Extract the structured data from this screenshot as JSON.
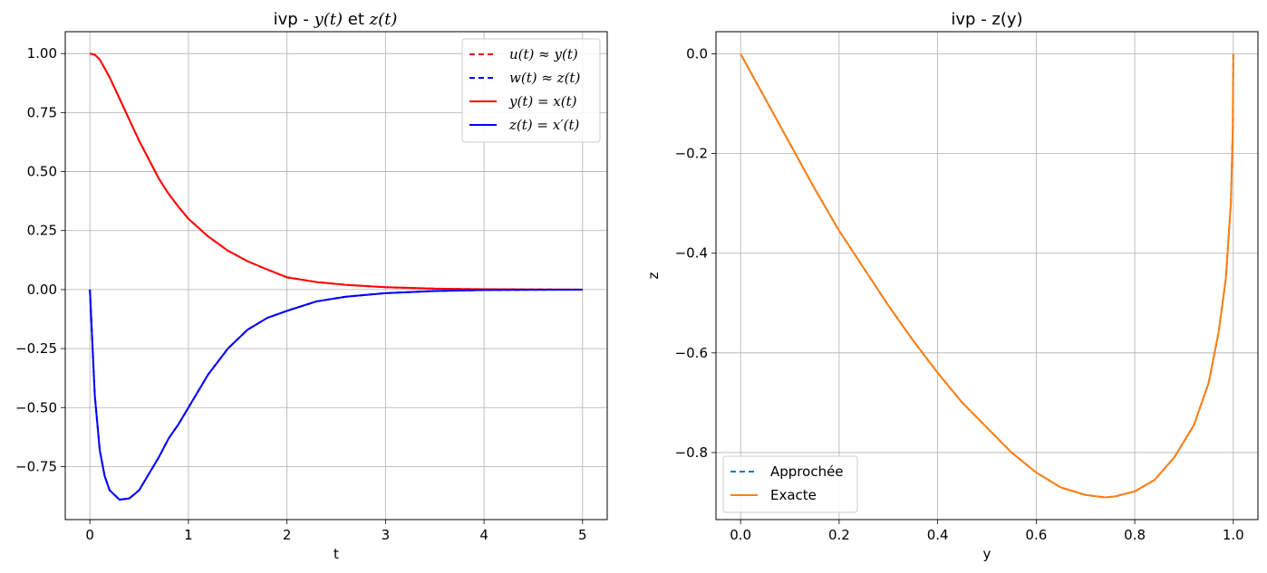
{
  "chart_data": [
    {
      "type": "line",
      "title_parts": [
        "ivp - ",
        "y(t)",
        " et ",
        "z(t)"
      ],
      "xlabel": "t",
      "ylabel": "",
      "xlim": [
        -0.25,
        5.25
      ],
      "ylim": [
        -0.9745,
        1.0927
      ],
      "x_ticks": [
        0,
        1,
        2,
        3,
        4,
        5
      ],
      "x_tick_labels": [
        "0",
        "1",
        "2",
        "3",
        "4",
        "5"
      ],
      "y_ticks": [
        1.0,
        0.75,
        0.5,
        0.25,
        0.0,
        -0.25,
        -0.5,
        -0.75
      ],
      "y_tick_labels": [
        "1.00",
        "0.75",
        "0.50",
        "0.25",
        "0.00",
        "−0.25",
        "−0.50",
        "−0.75"
      ],
      "grid": true,
      "legend_position": "top-right",
      "series": [
        {
          "name": "u(t) ≈ y(t)",
          "style": "dashed",
          "color": "#ff0000",
          "x": [
            0,
            0.05,
            0.1,
            0.2,
            0.3,
            0.4,
            0.5,
            0.6,
            0.7,
            0.8,
            0.9,
            1.0,
            1.2,
            1.4,
            1.6,
            1.8,
            2.0,
            2.3,
            2.6,
            3.0,
            3.5,
            4.0,
            4.5,
            5.0
          ],
          "y": [
            1.0,
            0.995,
            0.975,
            0.9,
            0.81,
            0.72,
            0.63,
            0.55,
            0.47,
            0.405,
            0.35,
            0.3,
            0.225,
            0.165,
            0.12,
            0.085,
            0.052,
            0.032,
            0.02,
            0.01,
            0.004,
            0.0015,
            0.0005,
            0.0002
          ]
        },
        {
          "name": "w(t) ≈ z(t)",
          "style": "dashed",
          "color": "#0000ff",
          "x": [
            0,
            0.05,
            0.1,
            0.15,
            0.2,
            0.3,
            0.4,
            0.5,
            0.6,
            0.7,
            0.8,
            0.9,
            1.0,
            1.2,
            1.4,
            1.6,
            1.8,
            2.0,
            2.3,
            2.6,
            3.0,
            3.5,
            4.0,
            4.5,
            5.0
          ],
          "y": [
            0.0,
            -0.45,
            -0.68,
            -0.79,
            -0.85,
            -0.89,
            -0.885,
            -0.85,
            -0.78,
            -0.71,
            -0.63,
            -0.57,
            -0.5,
            -0.36,
            -0.25,
            -0.17,
            -0.12,
            -0.09,
            -0.05,
            -0.03,
            -0.015,
            -0.006,
            -0.002,
            -0.0008,
            -0.0003
          ]
        },
        {
          "name": "y(t) = x(t)",
          "style": "solid",
          "color": "#ff0000",
          "x": [
            0,
            0.05,
            0.1,
            0.2,
            0.3,
            0.4,
            0.5,
            0.6,
            0.7,
            0.8,
            0.9,
            1.0,
            1.2,
            1.4,
            1.6,
            1.8,
            2.0,
            2.3,
            2.6,
            3.0,
            3.5,
            4.0,
            4.5,
            5.0
          ],
          "y": [
            1.0,
            0.995,
            0.975,
            0.9,
            0.81,
            0.72,
            0.63,
            0.55,
            0.47,
            0.405,
            0.35,
            0.3,
            0.225,
            0.165,
            0.12,
            0.085,
            0.052,
            0.032,
            0.02,
            0.01,
            0.004,
            0.0015,
            0.0005,
            0.0002
          ]
        },
        {
          "name": "z(t) = x′(t)",
          "style": "solid",
          "color": "#0000ff",
          "x": [
            0,
            0.05,
            0.1,
            0.15,
            0.2,
            0.3,
            0.4,
            0.5,
            0.6,
            0.7,
            0.8,
            0.9,
            1.0,
            1.2,
            1.4,
            1.6,
            1.8,
            2.0,
            2.3,
            2.6,
            3.0,
            3.5,
            4.0,
            4.5,
            5.0
          ],
          "y": [
            0.0,
            -0.45,
            -0.68,
            -0.79,
            -0.85,
            -0.89,
            -0.885,
            -0.85,
            -0.78,
            -0.71,
            -0.63,
            -0.57,
            -0.5,
            -0.36,
            -0.25,
            -0.17,
            -0.12,
            -0.09,
            -0.05,
            -0.03,
            -0.015,
            -0.006,
            -0.002,
            -0.0008,
            -0.0003
          ]
        }
      ]
    },
    {
      "type": "line",
      "title": "ivp - z(y)",
      "xlabel": "y",
      "ylabel": "z",
      "xlim": [
        -0.05,
        1.05
      ],
      "ylim": [
        -0.9345,
        0.0445
      ],
      "x_ticks": [
        0.0,
        0.2,
        0.4,
        0.6,
        0.8,
        1.0
      ],
      "x_tick_labels": [
        "0.0",
        "0.2",
        "0.4",
        "0.6",
        "0.8",
        "1.0"
      ],
      "y_ticks": [
        0.0,
        -0.2,
        -0.4,
        -0.6,
        -0.8
      ],
      "y_tick_labels": [
        "0.0",
        "−0.2",
        "−0.4",
        "−0.6",
        "−0.8"
      ],
      "grid": true,
      "legend_position": "bottom-left",
      "series": [
        {
          "name": "Approchée",
          "style": "dashed",
          "color": "#1f77b4",
          "x": [
            1.0,
            0.999,
            0.995,
            0.985,
            0.97,
            0.95,
            0.92,
            0.88,
            0.84,
            0.8,
            0.76,
            0.74,
            0.7,
            0.65,
            0.6,
            0.55,
            0.5,
            0.45,
            0.4,
            0.35,
            0.3,
            0.25,
            0.2,
            0.15,
            0.1,
            0.05,
            0.0
          ],
          "y": [
            0.0,
            -0.15,
            -0.3,
            -0.45,
            -0.56,
            -0.66,
            -0.745,
            -0.81,
            -0.855,
            -0.878,
            -0.888,
            -0.89,
            -0.885,
            -0.87,
            -0.84,
            -0.8,
            -0.75,
            -0.7,
            -0.64,
            -0.575,
            -0.505,
            -0.43,
            -0.355,
            -0.27,
            -0.18,
            -0.09,
            0.0
          ]
        },
        {
          "name": "Exacte",
          "style": "solid",
          "color": "#ff7f0e",
          "x": [
            1.0,
            0.999,
            0.995,
            0.985,
            0.97,
            0.95,
            0.92,
            0.88,
            0.84,
            0.8,
            0.76,
            0.74,
            0.7,
            0.65,
            0.6,
            0.55,
            0.5,
            0.45,
            0.4,
            0.35,
            0.3,
            0.25,
            0.2,
            0.15,
            0.1,
            0.05,
            0.0
          ],
          "y": [
            0.0,
            -0.15,
            -0.3,
            -0.45,
            -0.56,
            -0.66,
            -0.745,
            -0.81,
            -0.855,
            -0.878,
            -0.888,
            -0.89,
            -0.885,
            -0.87,
            -0.84,
            -0.8,
            -0.75,
            -0.7,
            -0.64,
            -0.575,
            -0.505,
            -0.43,
            -0.355,
            -0.27,
            -0.18,
            -0.09,
            0.0
          ]
        }
      ]
    }
  ]
}
